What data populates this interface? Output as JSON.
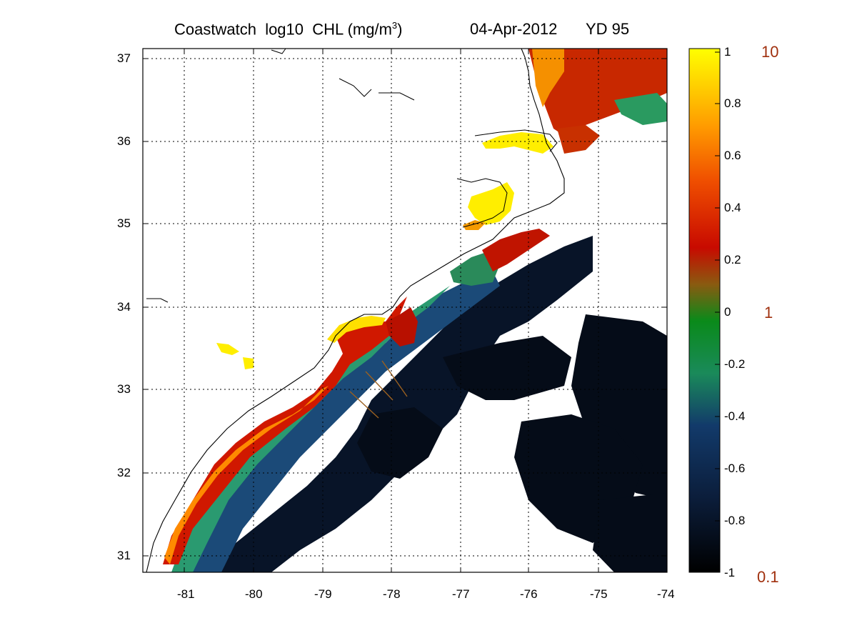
{
  "title": {
    "source": "Coastwatch",
    "variable": "log10",
    "quantity": "CHL",
    "units_prefix": "(mg/m",
    "units_exp": "3",
    "units_suffix": ")",
    "date": "04-Apr-2012",
    "yearday": "YD 95"
  },
  "axes": {
    "x_ticks": [
      "-81",
      "-80",
      "-79",
      "-78",
      "-77",
      "-76",
      "-75",
      "-74"
    ],
    "y_ticks": [
      "37",
      "36",
      "35",
      "34",
      "33",
      "32",
      "31"
    ]
  },
  "colorbar": {
    "ticks": [
      "1",
      "0.8",
      "0.6",
      "0.4",
      "0.2",
      "0",
      "-0.2",
      "-0.4",
      "-0.6",
      "-0.8",
      "-1"
    ],
    "right_labels": [
      "10",
      "1",
      "0.1"
    ],
    "colors": [
      "#000000",
      "#0f2a5a",
      "#1a8a5a",
      "#0a8a1a",
      "#c80a00",
      "#ff7a00",
      "#ffd000",
      "#ffff00"
    ]
  },
  "map": {
    "colors": {
      "land_outline": "#000000",
      "cloud": "#ffffff",
      "high_chl": "#ffff00",
      "mid_chl": "#d01800",
      "low_chl": "#071428",
      "grid": "#000000"
    }
  }
}
